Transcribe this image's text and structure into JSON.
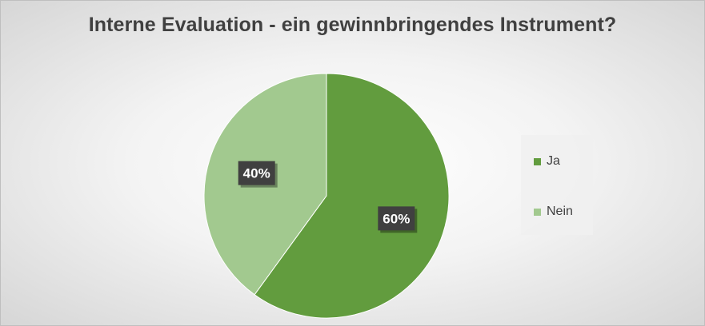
{
  "chart_data": {
    "type": "pie",
    "title": "Interne Evaluation - ein gewinnbringendes Instrument?",
    "slices": [
      {
        "name": "Ja",
        "value": 60,
        "label": "60%",
        "color": "#629C3E"
      },
      {
        "name": "Nein",
        "value": 40,
        "label": "40%",
        "color": "#A2C98F"
      }
    ],
    "legend": {
      "placement": "right"
    },
    "start_angle": "12 o'clock",
    "direction": "clockwise"
  }
}
